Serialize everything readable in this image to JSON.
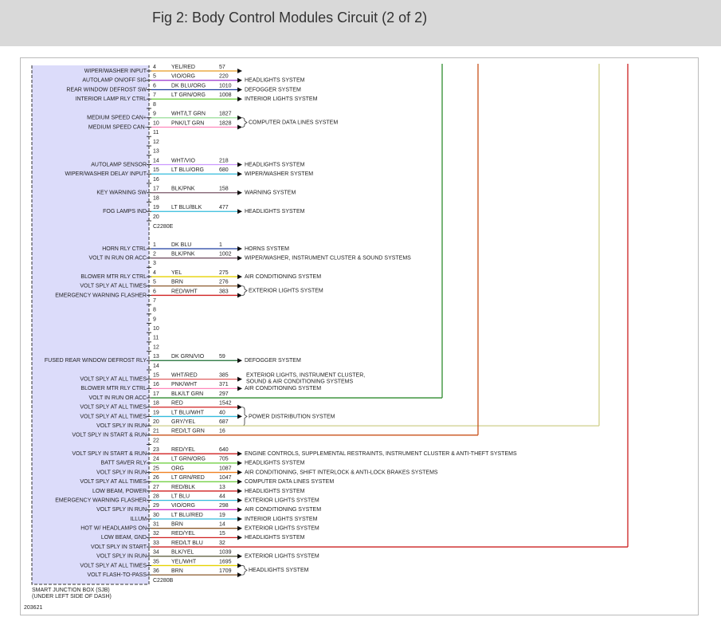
{
  "header": {
    "title": "Fig 2: Body Control Modules Circuit (2 of 2)"
  },
  "diagram": {
    "connectors": [
      {
        "name": "C2280E",
        "pins": [
          {
            "pin": "4",
            "function": "WIPER/WASHER INPUT",
            "wire": "YEL/RED",
            "circuit": "57",
            "color": "#e89a20"
          },
          {
            "pin": "5",
            "function": "AUTOLAMP ON/OFF SIG",
            "wire": "VIO/ORG",
            "circuit": "220",
            "color": "#9933cc",
            "destination": "HEADLIGHTS SYSTEM"
          },
          {
            "pin": "6",
            "function": "REAR WINDOW DEFROST SW",
            "wire": "DK BLU/ORG",
            "circuit": "1010",
            "color": "#1f3fa0",
            "destination": "DEFOGGER SYSTEM"
          },
          {
            "pin": "7",
            "function": "INTERIOR LAMP RLY CTRL",
            "wire": "LT GRN/ORG",
            "circuit": "1008",
            "color": "#66cc33",
            "destination": "INTERIOR LIGHTS SYSTEM"
          },
          {
            "pin": "8"
          },
          {
            "pin": "9",
            "function": "MEDIUM SPEED CAN+",
            "wire": "WHT/LT GRN",
            "circuit": "1827",
            "color": "#99dd99",
            "destination": "COMPUTER DATA LINES SYSTEM",
            "span": 2
          },
          {
            "pin": "10",
            "function": "MEDIUM SPEED CAN-",
            "wire": "PNK/LT GRN",
            "circuit": "1828",
            "color": "#ff88bb"
          },
          {
            "pin": "11"
          },
          {
            "pin": "12"
          },
          {
            "pin": "13"
          },
          {
            "pin": "14",
            "function": "AUTOLAMP SENSOR",
            "wire": "WHT/VIO",
            "circuit": "218",
            "color": "#cc99ff",
            "destination": "HEADLIGHTS SYSTEM"
          },
          {
            "pin": "15",
            "function": "WIPER/WASHER DELAY INPUT",
            "wire": "LT BLU/ORG",
            "circuit": "680",
            "color": "#33bbdd",
            "destination": "WIPER/WASHER SYSTEM"
          },
          {
            "pin": "16"
          },
          {
            "pin": "17",
            "function": "KEY WARNING SW",
            "wire": "BLK/PNK",
            "circuit": "158",
            "color": "#775566",
            "destination": "WARNING SYSTEM"
          },
          {
            "pin": "18"
          },
          {
            "pin": "19",
            "function": "FOG LAMPS IND",
            "wire": "LT BLU/BLK",
            "circuit": "477",
            "color": "#33bbdd",
            "destination": "HEADLIGHTS SYSTEM"
          },
          {
            "pin": "20"
          }
        ]
      },
      {
        "name": "C2280B",
        "pins": [
          {
            "pin": "1",
            "function": "HORN RLY CTRL",
            "wire": "DK BLU",
            "circuit": "1",
            "color": "#1f3fa0",
            "destination": "HORNS SYSTEM"
          },
          {
            "pin": "2",
            "function": "VOLT IN RUN OR ACC",
            "wire": "BLK/PNK",
            "circuit": "1002",
            "color": "#775566",
            "destination": "WIPER/WASHER, INSTRUMENT CLUSTER & SOUND SYSTEMS"
          },
          {
            "pin": "3"
          },
          {
            "pin": "4",
            "function": "BLOWER MTR RLY CTRL",
            "wire": "YEL",
            "circuit": "275",
            "color": "#e6d200",
            "destination": "AIR CONDITIONING SYSTEM"
          },
          {
            "pin": "5",
            "function": "VOLT SPLY AT ALL TIMES",
            "wire": "BRN",
            "circuit": "276",
            "color": "#8b5a2b",
            "destination": "EXTERIOR LIGHTS SYSTEM",
            "span": 2
          },
          {
            "pin": "6",
            "function": "EMERGENCY WARNING FLASHER",
            "wire": "RED/WHT",
            "circuit": "383",
            "color": "#d02020"
          },
          {
            "pin": "7"
          },
          {
            "pin": "8"
          },
          {
            "pin": "9"
          },
          {
            "pin": "10"
          },
          {
            "pin": "11"
          },
          {
            "pin": "12"
          },
          {
            "pin": "13",
            "function": "FUSED REAR WINDOW DEFROST RLY",
            "wire": "DK GRN/VIO",
            "circuit": "59",
            "color": "#1a6b30",
            "destination": "DEFOGGER SYSTEM"
          },
          {
            "pin": "14"
          },
          {
            "pin": "15",
            "function": "VOLT SPLY AT ALL TIMES",
            "wire": "WHT/RED",
            "circuit": "385",
            "color": "#e06060",
            "destination": [
              "EXTERIOR LIGHTS, INSTRUMENT CLUSTER,",
              "SOUND & AIR CONDITIONING SYSTEMS"
            ]
          },
          {
            "pin": "16",
            "function": "BLOWER MTR RLY CTRL",
            "wire": "PNK/WHT",
            "circuit": "371",
            "color": "#ff88bb",
            "destination": "AIR CONDITIONING SYSTEM"
          },
          {
            "pin": "17",
            "function": "VOLT IN RUN OR ACC",
            "wire": "BLK/LT GRN",
            "circuit": "297",
            "color": "#2e8b2e"
          },
          {
            "pin": "18",
            "function": "VOLT SPLY AT ALL TIMES",
            "wire": "RED",
            "circuit": "1542",
            "color": "#d02020",
            "destination": "POWER DISTRIBUTION SYSTEM",
            "span": 3
          },
          {
            "pin": "19",
            "function": "VOLT SPLY AT ALL TIMES",
            "wire": "LT BLU/WHT",
            "circuit": "40",
            "color": "#33bbdd"
          },
          {
            "pin": "20",
            "function": "VOLT SPLY IN RUN",
            "wire": "GRY/YEL",
            "circuit": "687",
            "color": "#cfcf8a"
          },
          {
            "pin": "21",
            "function": "VOLT SPLY IN START & RUN",
            "wire": "RED/LT GRN",
            "circuit": "16",
            "color": "#c8501a"
          },
          {
            "pin": "22"
          },
          {
            "pin": "23",
            "function": "VOLT SPLY IN START & RUN",
            "wire": "RED/YEL",
            "circuit": "640",
            "color": "#d02020",
            "destination": "ENGINE CONTROLS, SUPPLEMENTAL RESTRAINTS, INSTRUMENT CLUSTER & ANTI-THEFT SYSTEMS"
          },
          {
            "pin": "24",
            "function": "BATT SAVER RLY",
            "wire": "LT GRN/ORG",
            "circuit": "705",
            "color": "#66cc33",
            "destination": "HEADLIGHTS SYSTEM"
          },
          {
            "pin": "25",
            "function": "VOLT SPLY IN RUN",
            "wire": "ORG",
            "circuit": "1087",
            "color": "#f08020",
            "destination": "AIR CONDITIONING, SHIFT INTERLOCK & ANTI-LOCK BRAKES SYSTEMS"
          },
          {
            "pin": "26",
            "function": "VOLT SPLY AT ALL TIMES",
            "wire": "LT GRN/RED",
            "circuit": "1047",
            "color": "#66cc33",
            "destination": "COMPUTER DATA LINES SYSTEM"
          },
          {
            "pin": "27",
            "function": "LOW BEAM, POWER",
            "wire": "RED/BLK",
            "circuit": "13",
            "color": "#d02020",
            "destination": "HEADLIGHTS SYSTEM"
          },
          {
            "pin": "28",
            "function": "EMERGENCY WARNING FLASHER",
            "wire": "LT BLU",
            "circuit": "44",
            "color": "#33bbdd",
            "destination": "EXTERIOR LIGHTS SYSTEM"
          },
          {
            "pin": "29",
            "function": "VOLT SPLY IN RUN",
            "wire": "VIO/ORG",
            "circuit": "298",
            "color": "#cc33cc",
            "destination": "AIR CONDITIONING SYSTEM"
          },
          {
            "pin": "30",
            "function": "ILLUM",
            "wire": "LT BLU/RED",
            "circuit": "19",
            "color": "#33bbdd",
            "destination": "INTERIOR LIGHTS SYSTEM"
          },
          {
            "pin": "31",
            "function": "HOT W/ HEADLAMPS ON",
            "wire": "BRN",
            "circuit": "14",
            "color": "#8b5a2b",
            "destination": "EXTERIOR LIGHTS SYSTEM"
          },
          {
            "pin": "32",
            "function": "LOW BEAM, GND",
            "wire": "RED/YEL",
            "circuit": "15",
            "color": "#d02020",
            "destination": "HEADLIGHTS SYSTEM"
          },
          {
            "pin": "33",
            "function": "VOLT SPLY IN START",
            "wire": "RED/LT BLU",
            "circuit": "32",
            "color": "#cc2020"
          },
          {
            "pin": "34",
            "function": "VOLT SPLY IN RUN",
            "wire": "BLK/YEL",
            "circuit": "1039",
            "color": "#555533",
            "destination": "EXTERIOR LIGHTS SYSTEM"
          },
          {
            "pin": "35",
            "function": "VOLT SPLY AT ALL TIMES",
            "wire": "YEL/WHT",
            "circuit": "1695",
            "color": "#e6d200",
            "destination": "HEADLIGHTS SYSTEM",
            "span": 2
          },
          {
            "pin": "36",
            "function": "VOLT FLASH-TO-PASS",
            "wire": "BRN",
            "circuit": "1709",
            "color": "#8b5a2b"
          }
        ]
      }
    ],
    "module": [
      "SMART JUNCTION BOX (SJB)",
      "(UNDER LEFT SIDE OF DASH)"
    ],
    "figure_id": "203621"
  }
}
